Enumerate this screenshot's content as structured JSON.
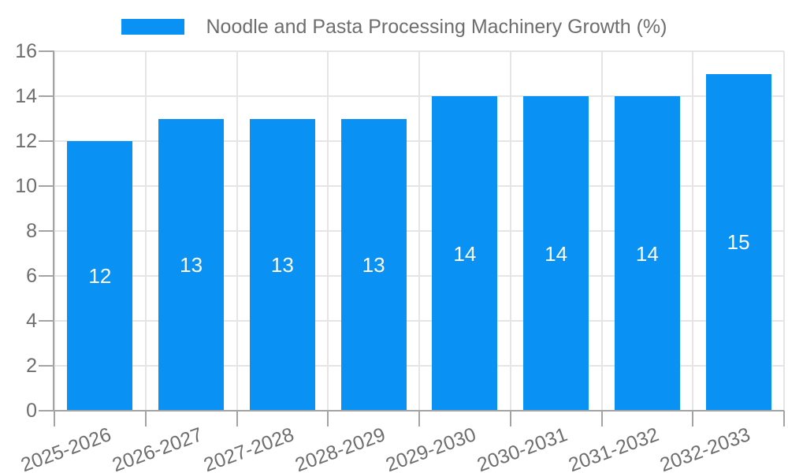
{
  "chart_data": {
    "type": "bar",
    "title": "Noodle and Pasta Processing Machinery Growth (%)",
    "categories": [
      "2025-2026",
      "2026-2027",
      "2027-2028",
      "2028-2029",
      "2029-2030",
      "2030-2031",
      "2031-2032",
      "2032-2033"
    ],
    "values": [
      12,
      13,
      13,
      13,
      14,
      14,
      14,
      15
    ],
    "series": [
      {
        "name": "Noodle and Pasta Processing Machinery Growth (%)",
        "values": [
          12,
          13,
          13,
          13,
          14,
          14,
          14,
          15
        ]
      }
    ],
    "xlabel": "",
    "ylabel": "",
    "ylim": [
      0,
      16
    ],
    "yticks": [
      0,
      2,
      4,
      6,
      8,
      10,
      12,
      14,
      16
    ],
    "grid": true,
    "legend_position": "top-center",
    "x_label_rotation_deg": -20,
    "bar_labels_inside": true,
    "colors": {
      "bar": "#0a91f4",
      "bar_label": "#ffffff",
      "grid": "#e5e5e5",
      "axis": "#a3a3a3",
      "text": "#6e6e6e",
      "background": "#ffffff"
    }
  }
}
